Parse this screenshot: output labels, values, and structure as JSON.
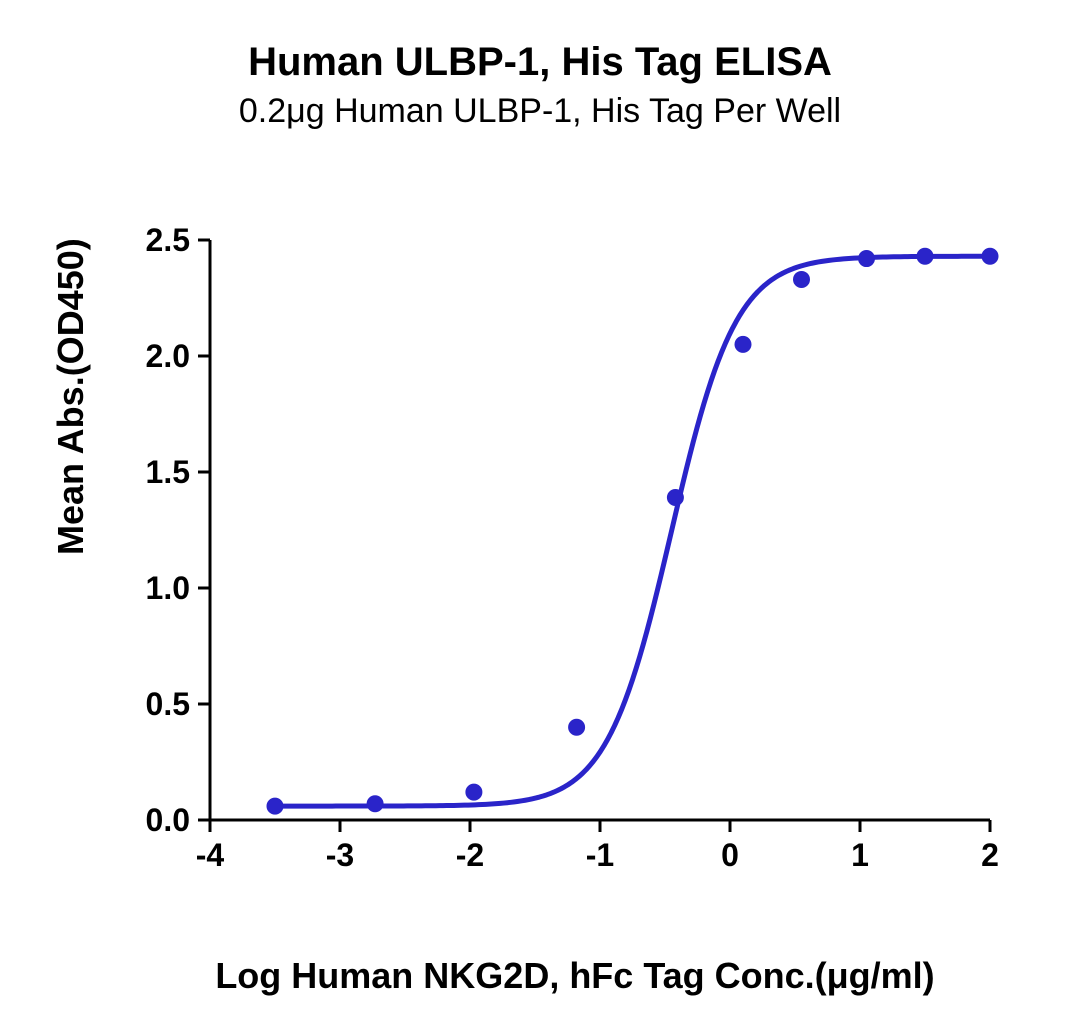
{
  "title": "Human ULBP-1, His Tag ELISA",
  "subtitle": "0.2μg Human ULBP-1, His Tag Per Well",
  "chart": {
    "type": "line",
    "xlabel": "Log Human NKG2D, hFc Tag Conc.(μg/ml)",
    "ylabel": "Mean Abs.(OD450)",
    "xlim": [
      -4,
      2
    ],
    "ylim": [
      0,
      2.5
    ],
    "xtick_step": 1,
    "ytick_step": 0.5,
    "xticks": [
      -4,
      -3,
      -2,
      -1,
      0,
      1,
      2
    ],
    "yticks": [
      0.0,
      0.5,
      1.0,
      1.5,
      2.0,
      2.5
    ],
    "ytick_labels": [
      "0.0",
      "0.5",
      "1.0",
      "1.5",
      "2.0",
      "2.5"
    ],
    "xtick_labels": [
      "-4",
      "-3",
      "-2",
      "-1",
      "0",
      "1",
      "2"
    ],
    "background_color": "#ffffff",
    "axis_color": "#000000",
    "axis_width": 3,
    "tick_length": 12,
    "label_fontsize": 32,
    "title_fontsize": 40,
    "subtitle_fontsize": 34,
    "axis_title_fontsize": 36,
    "series": {
      "color": "#2a24c9",
      "line_width": 5,
      "marker": "circle",
      "marker_size": 8,
      "points": [
        {
          "x": -3.5,
          "y": 0.06
        },
        {
          "x": -2.73,
          "y": 0.07
        },
        {
          "x": -1.97,
          "y": 0.12
        },
        {
          "x": -1.18,
          "y": 0.4
        },
        {
          "x": -0.42,
          "y": 1.39
        },
        {
          "x": 0.1,
          "y": 2.05
        },
        {
          "x": 0.55,
          "y": 2.33
        },
        {
          "x": 1.05,
          "y": 2.42
        },
        {
          "x": 1.5,
          "y": 2.43
        },
        {
          "x": 2.0,
          "y": 2.43
        }
      ],
      "sigmoid": {
        "bottom": 0.06,
        "top": 2.43,
        "ec50": -0.45,
        "hill": 1.75
      }
    }
  }
}
